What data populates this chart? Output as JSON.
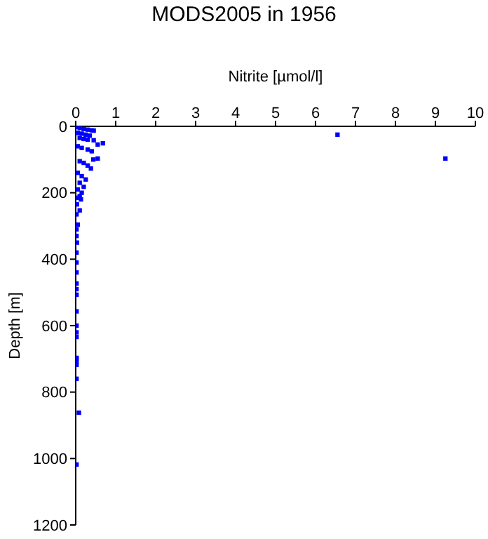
{
  "chart_data": {
    "type": "scatter",
    "title": "MODS2005 in 1956",
    "xlabel": "Nitrite [µmol/l]",
    "ylabel": "Depth [m]",
    "xlim": [
      0,
      10
    ],
    "xticks": [
      0,
      1,
      2,
      3,
      4,
      5,
      6,
      7,
      8,
      9,
      10
    ],
    "ylim": [
      1200,
      0
    ],
    "yticks": [
      0,
      200,
      400,
      600,
      800,
      1000,
      1200
    ],
    "grid": false,
    "marker": "square",
    "series": [
      {
        "color": "#0000ff",
        "x": [
          0.05,
          0.1,
          0.2,
          0.3,
          0.4,
          0.45,
          0.05,
          0.15,
          0.25,
          0.35,
          0.1,
          0.2,
          0.3,
          0.45,
          0.68,
          0.55,
          0.05,
          0.15,
          0.3,
          0.4,
          0.55,
          0.44,
          0.1,
          0.2,
          0.3,
          0.38,
          0.05,
          0.15,
          0.25,
          0.1,
          0.2,
          0.05,
          0.15,
          0.1,
          0.05,
          0.13,
          0.03,
          0.1,
          0.02,
          0.05,
          0.02,
          0.02,
          0.03,
          0.02,
          0.02,
          0.02,
          0.02,
          0.02,
          0.02,
          0.02,
          0.02,
          0.02,
          0.02,
          0.02,
          0.02,
          0.02,
          0.02,
          0.02,
          0.08,
          0.02,
          6.55,
          9.25
        ],
        "values": [
          2,
          5,
          8,
          10,
          12,
          13,
          20,
          22,
          25,
          28,
          35,
          38,
          40,
          42,
          51,
          55,
          60,
          65,
          70,
          75,
          97,
          100,
          105,
          110,
          118,
          127,
          140,
          150,
          160,
          170,
          182,
          190,
          200,
          210,
          215,
          220,
          235,
          253,
          265,
          296,
          310,
          330,
          350,
          380,
          410,
          440,
          473,
          490,
          507,
          557,
          600,
          620,
          634,
          697,
          710,
          718,
          760,
          700,
          862,
          1018,
          25,
          97
        ]
      }
    ]
  }
}
